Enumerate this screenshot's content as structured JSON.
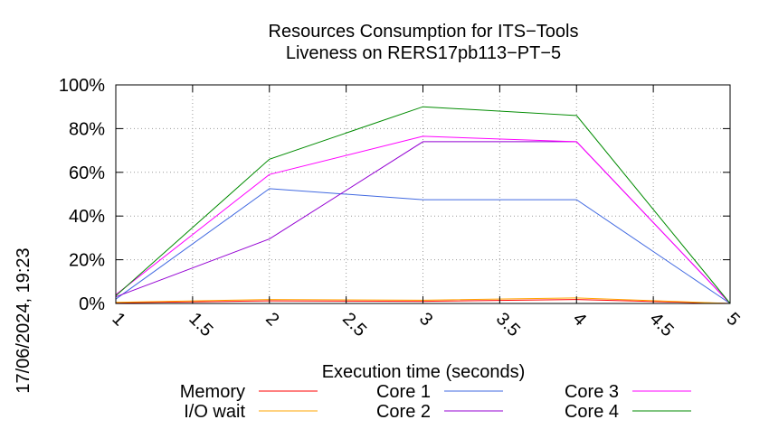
{
  "chart_data": {
    "type": "line",
    "title": [
      "Resources Consumption for ITS−Tools",
      "Liveness on RERS17pb113−PT−5"
    ],
    "xlabel": "Execution time (seconds)",
    "ylabel": "",
    "side_label": "17/06/2024, 19:23",
    "xlim": [
      1,
      5
    ],
    "ylim": [
      0,
      100
    ],
    "x_ticks": [
      {
        "value": 1,
        "label": "1"
      },
      {
        "value": 1.5,
        "label": "1.5"
      },
      {
        "value": 2,
        "label": "2"
      },
      {
        "value": 2.5,
        "label": "2.5"
      },
      {
        "value": 3,
        "label": "3"
      },
      {
        "value": 3.5,
        "label": "3.5"
      },
      {
        "value": 4,
        "label": "4"
      },
      {
        "value": 4.5,
        "label": "4.5"
      },
      {
        "value": 5,
        "label": "5"
      }
    ],
    "y_ticks": [
      {
        "value": 0,
        "label": "0%"
      },
      {
        "value": 20,
        "label": "20%"
      },
      {
        "value": 40,
        "label": "40%"
      },
      {
        "value": 60,
        "label": "60%"
      },
      {
        "value": 80,
        "label": "80%"
      },
      {
        "value": 100,
        "label": "100%"
      }
    ],
    "grid": true,
    "legend_position": "bottom",
    "x": [
      1,
      2,
      3,
      4,
      5
    ],
    "series": [
      {
        "name": "Memory",
        "color": "#ff0000",
        "values": [
          0.3,
          1.2,
          1.0,
          1.8,
          0
        ]
      },
      {
        "name": "I/O wait",
        "color": "#ffa500",
        "values": [
          0.5,
          1.8,
          1.5,
          2.5,
          0
        ]
      },
      {
        "name": "Core 1",
        "color": "#4169e1",
        "values": [
          2,
          52.5,
          47.5,
          47.5,
          0
        ]
      },
      {
        "name": "Core 2",
        "color": "#9400d3",
        "values": [
          3,
          29.5,
          74,
          74,
          0
        ]
      },
      {
        "name": "Core 3",
        "color": "#ff00ff",
        "values": [
          4,
          59,
          76.5,
          74,
          0
        ]
      },
      {
        "name": "Core 4",
        "color": "#008b00",
        "values": [
          3.5,
          66,
          90,
          86,
          0
        ]
      }
    ]
  }
}
